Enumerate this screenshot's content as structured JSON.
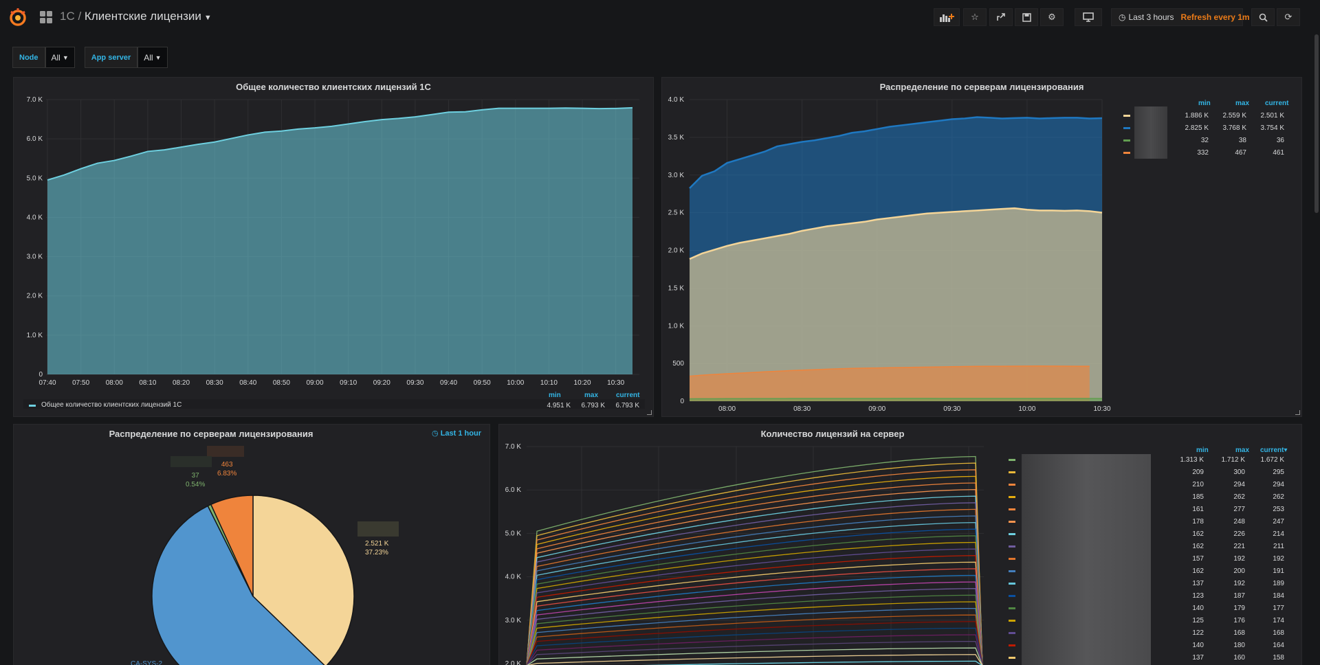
{
  "topbar": {
    "folder": "1C /",
    "title": "Клиентские лицензии",
    "time_range": "Last 3 hours",
    "refresh": "Refresh every 1m"
  },
  "variables": [
    {
      "label": "Node",
      "value": "All"
    },
    {
      "label": "App server",
      "value": "All"
    }
  ],
  "panel1": {
    "title": "Общее количество клиентских лицензий 1C",
    "legend": {
      "headers": [
        "min",
        "max",
        "current"
      ],
      "series": "Общее количество клиентских лицензий 1C",
      "min": "4.951 K",
      "max": "6.793 K",
      "current": "6.793 K"
    }
  },
  "panel2": {
    "title": "Распределение по серверам лицензирования",
    "legend": {
      "headers": [
        "min",
        "max",
        "current"
      ],
      "rows": [
        {
          "color": "#f4d598",
          "min": "1.886 K",
          "max": "2.559 K",
          "current": "2.501 K"
        },
        {
          "color": "#1f78c1",
          "min": "2.825 K",
          "max": "3.768 K",
          "current": "3.754 K"
        },
        {
          "color": "#629e51",
          "min": "32",
          "max": "38",
          "current": "36"
        },
        {
          "color": "#ef843c",
          "min": "332",
          "max": "467",
          "current": "461"
        }
      ]
    }
  },
  "panel3": {
    "title": "Распределение по серверам лицензирования",
    "badge": "Last 1 hour",
    "labels": {
      "orange_value": "463",
      "orange_pct": "6.83%",
      "green_value": "37",
      "green_pct": "0.54%",
      "yellow_value": "2.521 K",
      "yellow_pct": "37.23%",
      "blue_name": "CA-SYS-2"
    }
  },
  "panel4": {
    "title": "Количество лицензий на сервер",
    "legend": {
      "headers": [
        "min",
        "max",
        "current▾"
      ],
      "rows": [
        {
          "color": "#7eb26d",
          "min": "1.313 K",
          "max": "1.712 K",
          "current": "1.672 K"
        },
        {
          "color": "#eab839",
          "min": "209",
          "max": "300",
          "current": "295"
        },
        {
          "color": "#ef843c",
          "min": "210",
          "max": "294",
          "current": "294"
        },
        {
          "color": "#e5ac0e",
          "min": "185",
          "max": "262",
          "current": "262"
        },
        {
          "color": "#ef843c",
          "min": "161",
          "max": "277",
          "current": "253"
        },
        {
          "color": "#f9934e",
          "min": "178",
          "max": "248",
          "current": "247"
        },
        {
          "color": "#6ed0e0",
          "min": "162",
          "max": "226",
          "current": "214"
        },
        {
          "color": "#705da0",
          "min": "162",
          "max": "221",
          "current": "211"
        },
        {
          "color": "#e0752d",
          "min": "157",
          "max": "192",
          "current": "192"
        },
        {
          "color": "#447ebc",
          "min": "162",
          "max": "200",
          "current": "191"
        },
        {
          "color": "#65c5db",
          "min": "137",
          "max": "192",
          "current": "189"
        },
        {
          "color": "#0a50a1",
          "min": "123",
          "max": "187",
          "current": "184"
        },
        {
          "color": "#508642",
          "min": "140",
          "max": "179",
          "current": "177"
        },
        {
          "color": "#cca300",
          "min": "125",
          "max": "176",
          "current": "174"
        },
        {
          "color": "#614d93",
          "min": "122",
          "max": "168",
          "current": "168"
        },
        {
          "color": "#bf1b00",
          "min": "140",
          "max": "180",
          "current": "164"
        },
        {
          "color": "#f2c96d",
          "min": "137",
          "max": "160",
          "current": "158"
        }
      ]
    }
  },
  "chart_data": [
    {
      "type": "area",
      "title": "Общее количество клиентских лицензий 1C",
      "x": [
        "07:40",
        "07:45",
        "07:50",
        "07:55",
        "08:00",
        "08:05",
        "08:10",
        "08:15",
        "08:20",
        "08:25",
        "08:30",
        "08:35",
        "08:40",
        "08:45",
        "08:50",
        "08:55",
        "09:00",
        "09:05",
        "09:10",
        "09:15",
        "09:20",
        "09:25",
        "09:30",
        "09:35",
        "09:40",
        "09:45",
        "09:50",
        "09:55",
        "10:00",
        "10:05",
        "10:10",
        "10:15",
        "10:20",
        "10:25",
        "10:30",
        "10:35"
      ],
      "xticks": [
        "07:40",
        "07:50",
        "08:00",
        "08:10",
        "08:20",
        "08:30",
        "08:40",
        "08:50",
        "09:00",
        "09:10",
        "09:20",
        "09:30",
        "09:40",
        "09:50",
        "10:00",
        "10:10",
        "10:20",
        "10:30"
      ],
      "yticks": [
        "0",
        "1.0 K",
        "2.0 K",
        "3.0 K",
        "4.0 K",
        "5.0 K",
        "6.0 K",
        "7.0 K"
      ],
      "ylim": [
        0,
        7000
      ],
      "series": [
        {
          "name": "Общее количество клиентских лицензий 1C",
          "color": "#6ed0e0",
          "values": [
            4951,
            5080,
            5240,
            5380,
            5450,
            5560,
            5680,
            5720,
            5790,
            5860,
            5920,
            6010,
            6100,
            6170,
            6200,
            6250,
            6280,
            6320,
            6380,
            6440,
            6490,
            6520,
            6560,
            6620,
            6680,
            6690,
            6740,
            6780,
            6780,
            6780,
            6780,
            6785,
            6780,
            6770,
            6775,
            6793
          ]
        }
      ]
    },
    {
      "type": "area",
      "title": "Распределение по серверам лицензирования",
      "x": [
        "07:45",
        "07:50",
        "07:55",
        "08:00",
        "08:05",
        "08:10",
        "08:15",
        "08:20",
        "08:25",
        "08:30",
        "08:35",
        "08:40",
        "08:45",
        "08:50",
        "08:55",
        "09:00",
        "09:05",
        "09:10",
        "09:15",
        "09:20",
        "09:25",
        "09:30",
        "09:35",
        "09:40",
        "09:45",
        "09:50",
        "09:55",
        "10:00",
        "10:05",
        "10:10",
        "10:15",
        "10:20",
        "10:25",
        "10:30"
      ],
      "xticks": [
        "08:00",
        "08:30",
        "09:00",
        "09:30",
        "10:00",
        "10:30"
      ],
      "yticks": [
        "0",
        "500",
        "1.0 K",
        "1.5 K",
        "2.0 K",
        "2.5 K",
        "3.0 K",
        "3.5 K",
        "4.0 K"
      ],
      "ylim": [
        0,
        4000
      ],
      "series": [
        {
          "color": "#1f78c1",
          "values": [
            2825,
            2990,
            3050,
            3160,
            3210,
            3260,
            3310,
            3380,
            3410,
            3440,
            3460,
            3490,
            3520,
            3560,
            3580,
            3610,
            3640,
            3660,
            3680,
            3700,
            3720,
            3740,
            3750,
            3768,
            3760,
            3750,
            3755,
            3760,
            3750,
            3755,
            3760,
            3760,
            3750,
            3754
          ]
        },
        {
          "color": "#f4d598",
          "values": [
            1886,
            1960,
            2010,
            2060,
            2100,
            2130,
            2160,
            2190,
            2220,
            2260,
            2290,
            2320,
            2340,
            2360,
            2380,
            2410,
            2430,
            2450,
            2470,
            2490,
            2500,
            2510,
            2520,
            2530,
            2540,
            2550,
            2559,
            2540,
            2530,
            2530,
            2525,
            2530,
            2520,
            2501
          ]
        },
        {
          "color": "#ef843c",
          "values": [
            332,
            345,
            355,
            365,
            372,
            380,
            390,
            398,
            405,
            412,
            418,
            425,
            430,
            435,
            438,
            441,
            444,
            447,
            450,
            452,
            455,
            458,
            460,
            462,
            463,
            464,
            465,
            466,
            467,
            466,
            465,
            464,
            463,
            461
          ]
        },
        {
          "color": "#629e51",
          "values": [
            32,
            33,
            33,
            34,
            34,
            35,
            35,
            35,
            36,
            36,
            36,
            36,
            37,
            37,
            37,
            37,
            37,
            38,
            38,
            38,
            37,
            37,
            37,
            37,
            36,
            36,
            36,
            36,
            36,
            36,
            36,
            36,
            36,
            36
          ]
        }
      ]
    },
    {
      "type": "pie",
      "title": "Распределение по серверам лицензирования",
      "slices": [
        {
          "label": "2.521 K",
          "value": 2521,
          "percent": 37.23,
          "color": "#f4d598"
        },
        {
          "label": "CA-SYS-2",
          "percent": 55.4,
          "color": "#5195ce"
        },
        {
          "label": "37",
          "value": 37,
          "percent": 0.54,
          "color": "#7eb26d"
        },
        {
          "label": "463",
          "value": 463,
          "percent": 6.83,
          "color": "#ef843c"
        }
      ]
    },
    {
      "type": "line",
      "title": "Количество лицензий на сервер",
      "yticks": [
        "2.0 K",
        "3.0 K",
        "4.0 K",
        "5.0 K",
        "6.0 K",
        "7.0 K"
      ],
      "ylim": [
        2000,
        7000
      ],
      "stacked_total_start": 5050,
      "stacked_total_end": 6770
    }
  ]
}
